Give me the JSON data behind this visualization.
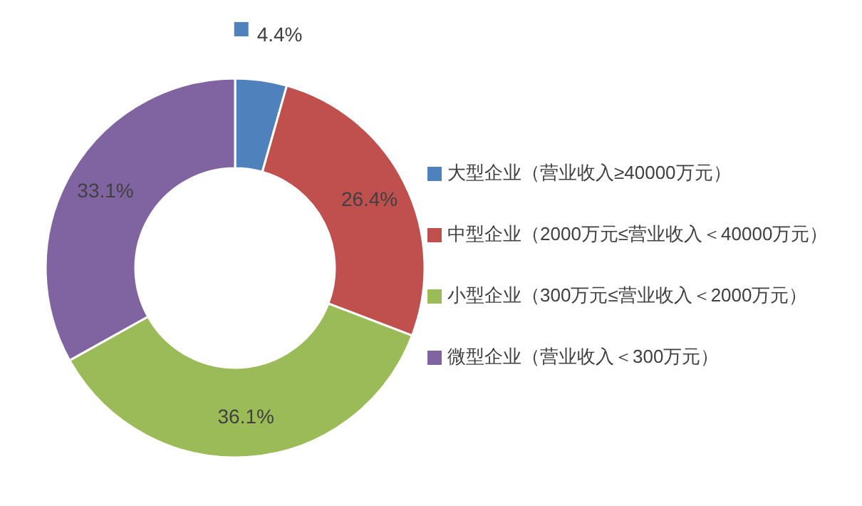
{
  "chart_data": {
    "type": "donut",
    "categories": [
      "大型企业（营业收入≥40000万元）",
      "中型企业（2000万元≤营业收入＜40000万元）",
      "小型企业（300万元≤营业收入＜2000万元）",
      "微型企业（营业收入＜300万元）"
    ],
    "values": [
      4.4,
      26.4,
      36.1,
      33.1
    ],
    "colors": [
      "#4f81bd",
      "#c0504d",
      "#9bbb59",
      "#8064a2"
    ],
    "value_labels": [
      "4.4%",
      "26.4%",
      "36.1%",
      "33.1%"
    ],
    "legend": "right"
  }
}
